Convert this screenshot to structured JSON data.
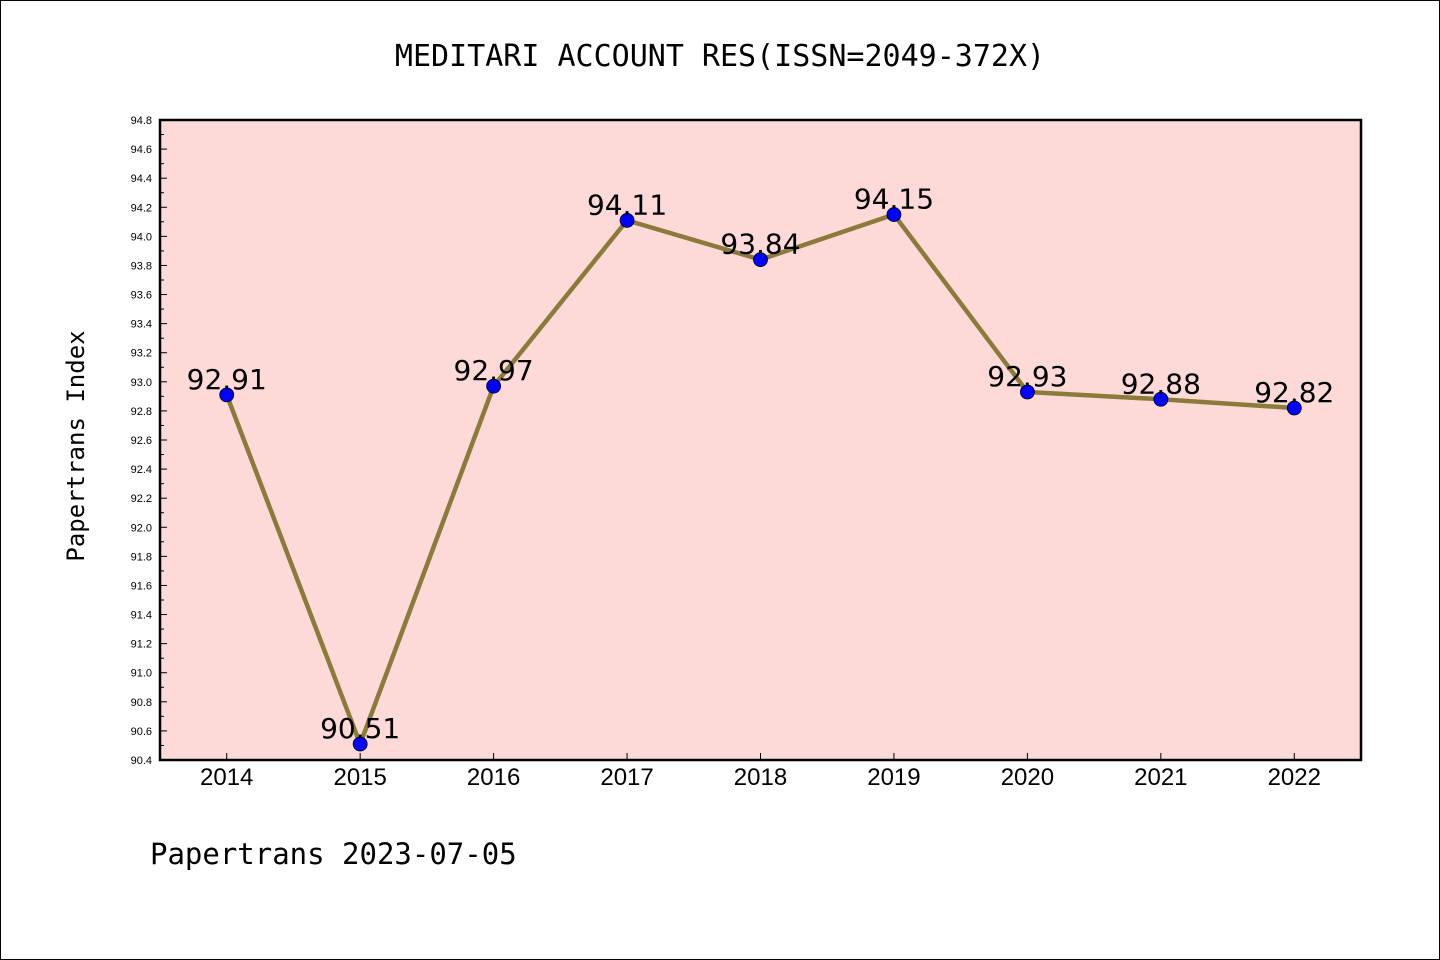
{
  "chart_data": {
    "type": "line",
    "title": "MEDITARI ACCOUNT RES(ISSN=2049-372X)",
    "xlabel": "",
    "ylabel": "Papertrans Index",
    "footer": "Papertrans 2023-07-05",
    "categories": [
      "2014",
      "2015",
      "2016",
      "2017",
      "2018",
      "2019",
      "2020",
      "2021",
      "2022"
    ],
    "series": [
      {
        "values": [
          92.91,
          90.51,
          92.97,
          94.11,
          93.84,
          94.15,
          92.93,
          92.88,
          92.82
        ],
        "labels": [
          "92.91",
          "90.51",
          "92.97",
          "94.11",
          "93.84",
          "94.15",
          "92.93",
          "92.88",
          "92.82"
        ]
      }
    ],
    "ylim": [
      90.4,
      94.8
    ],
    "yticks": [
      "90.4",
      "90.6",
      "90.8",
      "91.0",
      "91.2",
      "91.4",
      "91.6",
      "91.8",
      "92.0",
      "92.2",
      "92.4",
      "92.6",
      "92.8",
      "93.0",
      "93.2",
      "93.4",
      "93.6",
      "93.8",
      "94.0",
      "94.2",
      "94.4",
      "94.6",
      "94.8"
    ],
    "grid": false,
    "legend": "none",
    "colors": {
      "plot_background": "#fddad7",
      "line": "#8b7a3a",
      "marker": "#0000ff",
      "axes": "#000000"
    }
  }
}
